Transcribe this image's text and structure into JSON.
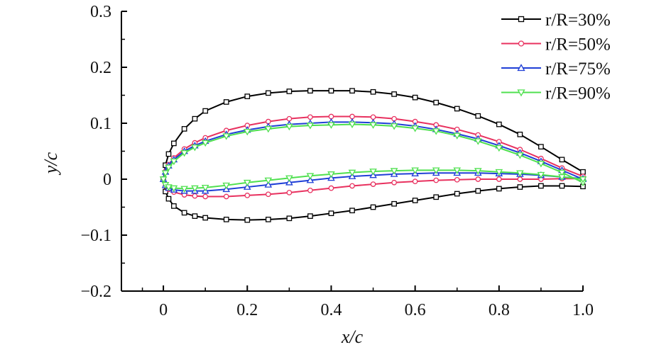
{
  "chart_data": {
    "type": "line",
    "title": "",
    "xlabel": "x/c",
    "ylabel": "y/c",
    "xlim": [
      -0.1,
      1.0
    ],
    "ylim": [
      -0.2,
      0.3
    ],
    "x_ticks": [
      0,
      0.2,
      0.4,
      0.6,
      0.8,
      1.0
    ],
    "x_tick_labels": [
      "0",
      "0.2",
      "0.4",
      "0.6",
      "0.8",
      "1.0"
    ],
    "y_ticks": [
      -0.2,
      -0.1,
      0,
      0.1,
      0.2,
      0.3
    ],
    "y_tick_labels": [
      "−0.2",
      "−0.1",
      "0",
      "0.1",
      "0.2",
      "0.3"
    ],
    "grid": false,
    "legend_position": "top-right",
    "series": [
      {
        "name": "r/R=30%",
        "color": "#000000",
        "marker": "square",
        "x": [
          1.0,
          0.95,
          0.9,
          0.85,
          0.8,
          0.75,
          0.7,
          0.65,
          0.6,
          0.55,
          0.5,
          0.45,
          0.4,
          0.35,
          0.3,
          0.25,
          0.2,
          0.15,
          0.1,
          0.075,
          0.05,
          0.025,
          0.0125,
          0.005,
          0.0,
          0.005,
          0.0125,
          0.025,
          0.05,
          0.075,
          0.1,
          0.15,
          0.2,
          0.25,
          0.3,
          0.35,
          0.4,
          0.45,
          0.5,
          0.55,
          0.6,
          0.65,
          0.7,
          0.75,
          0.8,
          0.85,
          0.9,
          0.95,
          1.0
        ],
        "y": [
          0.013,
          0.035,
          0.058,
          0.08,
          0.098,
          0.113,
          0.126,
          0.137,
          0.146,
          0.152,
          0.156,
          0.158,
          0.158,
          0.158,
          0.157,
          0.154,
          0.148,
          0.138,
          0.122,
          0.108,
          0.09,
          0.064,
          0.045,
          0.025,
          0.0,
          -0.022,
          -0.035,
          -0.048,
          -0.06,
          -0.066,
          -0.069,
          -0.072,
          -0.073,
          -0.072,
          -0.07,
          -0.066,
          -0.061,
          -0.056,
          -0.05,
          -0.044,
          -0.038,
          -0.032,
          -0.026,
          -0.021,
          -0.017,
          -0.014,
          -0.012,
          -0.012,
          -0.013
        ]
      },
      {
        "name": "r/R=50%",
        "color": "#e8315f",
        "marker": "circle",
        "x": [
          1.0,
          0.95,
          0.9,
          0.85,
          0.8,
          0.75,
          0.7,
          0.65,
          0.6,
          0.55,
          0.5,
          0.45,
          0.4,
          0.35,
          0.3,
          0.25,
          0.2,
          0.15,
          0.1,
          0.075,
          0.05,
          0.025,
          0.0125,
          0.005,
          0.0,
          0.005,
          0.0125,
          0.025,
          0.05,
          0.075,
          0.1,
          0.15,
          0.2,
          0.25,
          0.3,
          0.35,
          0.4,
          0.45,
          0.5,
          0.55,
          0.6,
          0.65,
          0.7,
          0.75,
          0.8,
          0.85,
          0.9,
          0.95,
          1.0
        ],
        "y": [
          0.005,
          0.02,
          0.037,
          0.053,
          0.067,
          0.079,
          0.089,
          0.097,
          0.103,
          0.108,
          0.111,
          0.112,
          0.112,
          0.111,
          0.108,
          0.103,
          0.096,
          0.087,
          0.074,
          0.065,
          0.054,
          0.038,
          0.026,
          0.014,
          0.0,
          -0.012,
          -0.018,
          -0.023,
          -0.028,
          -0.03,
          -0.031,
          -0.031,
          -0.029,
          -0.027,
          -0.024,
          -0.02,
          -0.016,
          -0.012,
          -0.009,
          -0.006,
          -0.004,
          -0.002,
          -0.001,
          0.0,
          0.0,
          0.0,
          0.0,
          0.001,
          0.001
        ]
      },
      {
        "name": "r/R=75%",
        "color": "#1f3fd6",
        "marker": "triangle-up",
        "x": [
          1.0,
          0.95,
          0.9,
          0.85,
          0.8,
          0.75,
          0.7,
          0.65,
          0.6,
          0.55,
          0.5,
          0.45,
          0.4,
          0.35,
          0.3,
          0.25,
          0.2,
          0.15,
          0.1,
          0.075,
          0.05,
          0.025,
          0.0125,
          0.005,
          0.0,
          0.005,
          0.0125,
          0.025,
          0.05,
          0.075,
          0.1,
          0.15,
          0.2,
          0.25,
          0.3,
          0.35,
          0.4,
          0.45,
          0.5,
          0.55,
          0.6,
          0.65,
          0.7,
          0.75,
          0.8,
          0.85,
          0.9,
          0.95,
          1.0
        ],
        "y": [
          0.0,
          0.016,
          0.032,
          0.047,
          0.06,
          0.072,
          0.081,
          0.089,
          0.095,
          0.099,
          0.101,
          0.102,
          0.102,
          0.1,
          0.098,
          0.094,
          0.088,
          0.08,
          0.068,
          0.06,
          0.05,
          0.035,
          0.024,
          0.013,
          0.0,
          -0.011,
          -0.016,
          -0.019,
          -0.021,
          -0.021,
          -0.021,
          -0.018,
          -0.014,
          -0.01,
          -0.006,
          -0.002,
          0.002,
          0.005,
          0.007,
          0.009,
          0.01,
          0.011,
          0.011,
          0.011,
          0.01,
          0.009,
          0.007,
          0.004,
          0.001
        ]
      },
      {
        "name": "r/R=90%",
        "color": "#4fe04f",
        "marker": "triangle-down",
        "x": [
          1.0,
          0.95,
          0.9,
          0.85,
          0.8,
          0.75,
          0.7,
          0.65,
          0.6,
          0.55,
          0.5,
          0.45,
          0.4,
          0.35,
          0.3,
          0.25,
          0.2,
          0.15,
          0.1,
          0.075,
          0.05,
          0.025,
          0.0125,
          0.005,
          0.0,
          0.005,
          0.0125,
          0.025,
          0.05,
          0.075,
          0.1,
          0.15,
          0.2,
          0.25,
          0.3,
          0.35,
          0.4,
          0.45,
          0.5,
          0.55,
          0.6,
          0.65,
          0.7,
          0.75,
          0.8,
          0.85,
          0.9,
          0.95,
          1.0
        ],
        "y": [
          -0.006,
          0.012,
          0.028,
          0.043,
          0.056,
          0.068,
          0.078,
          0.086,
          0.091,
          0.095,
          0.097,
          0.098,
          0.097,
          0.096,
          0.094,
          0.09,
          0.085,
          0.077,
          0.065,
          0.057,
          0.047,
          0.032,
          0.021,
          0.011,
          0.0,
          -0.01,
          -0.014,
          -0.016,
          -0.017,
          -0.016,
          -0.015,
          -0.011,
          -0.006,
          -0.002,
          0.002,
          0.006,
          0.009,
          0.012,
          0.014,
          0.015,
          0.016,
          0.016,
          0.016,
          0.015,
          0.013,
          0.011,
          0.008,
          0.004,
          0.0
        ]
      }
    ]
  }
}
